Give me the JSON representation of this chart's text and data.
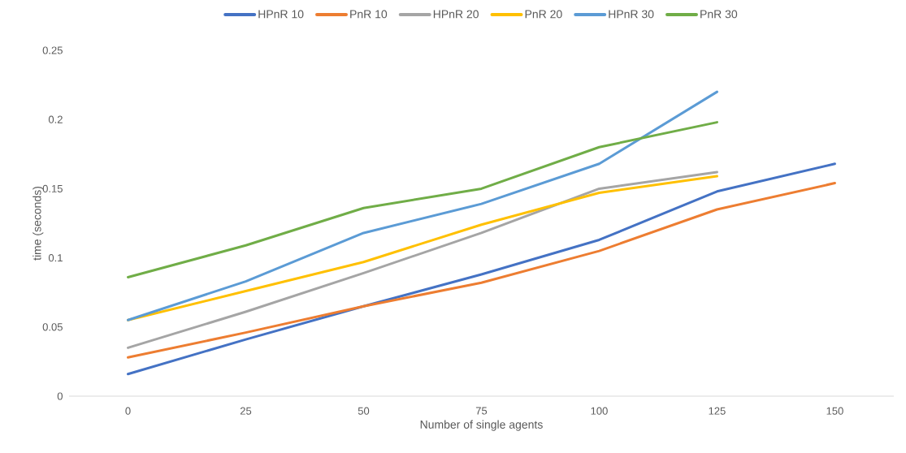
{
  "chart_data": {
    "type": "line",
    "xlabel": "Number  of single agents",
    "ylabel": "time (seconds)",
    "categories": [
      "0",
      "25",
      "50",
      "75",
      "100",
      "125",
      "150"
    ],
    "ylim": [
      0,
      0.25
    ],
    "yticks": [
      0,
      0.05,
      0.1,
      0.15,
      0.2,
      0.25
    ],
    "grid": false,
    "legend": "top",
    "marker": "none",
    "line_style": "solid",
    "series": [
      {
        "name": "HPnR 10",
        "color": "#4472c4",
        "values": [
          0.016,
          0.041,
          0.065,
          0.088,
          0.113,
          0.148,
          0.168
        ]
      },
      {
        "name": "PnR 10",
        "color": "#ed7d31",
        "values": [
          0.028,
          0.046,
          0.065,
          0.082,
          0.105,
          0.135,
          0.154
        ]
      },
      {
        "name": "HPnR 20",
        "color": "#a5a5a5",
        "values": [
          0.035,
          0.061,
          0.089,
          0.118,
          0.15,
          0.162,
          null
        ]
      },
      {
        "name": "PnR 20",
        "color": "#ffc000",
        "values": [
          0.055,
          0.076,
          0.097,
          0.124,
          0.147,
          0.159,
          null
        ]
      },
      {
        "name": "HPnR 30",
        "color": "#5b9bd5",
        "values": [
          0.055,
          0.083,
          0.118,
          0.139,
          0.168,
          0.22,
          null
        ]
      },
      {
        "name": "PnR 30",
        "color": "#70ad47",
        "values": [
          0.086,
          0.109,
          0.136,
          0.15,
          0.18,
          0.198,
          null
        ]
      }
    ]
  }
}
